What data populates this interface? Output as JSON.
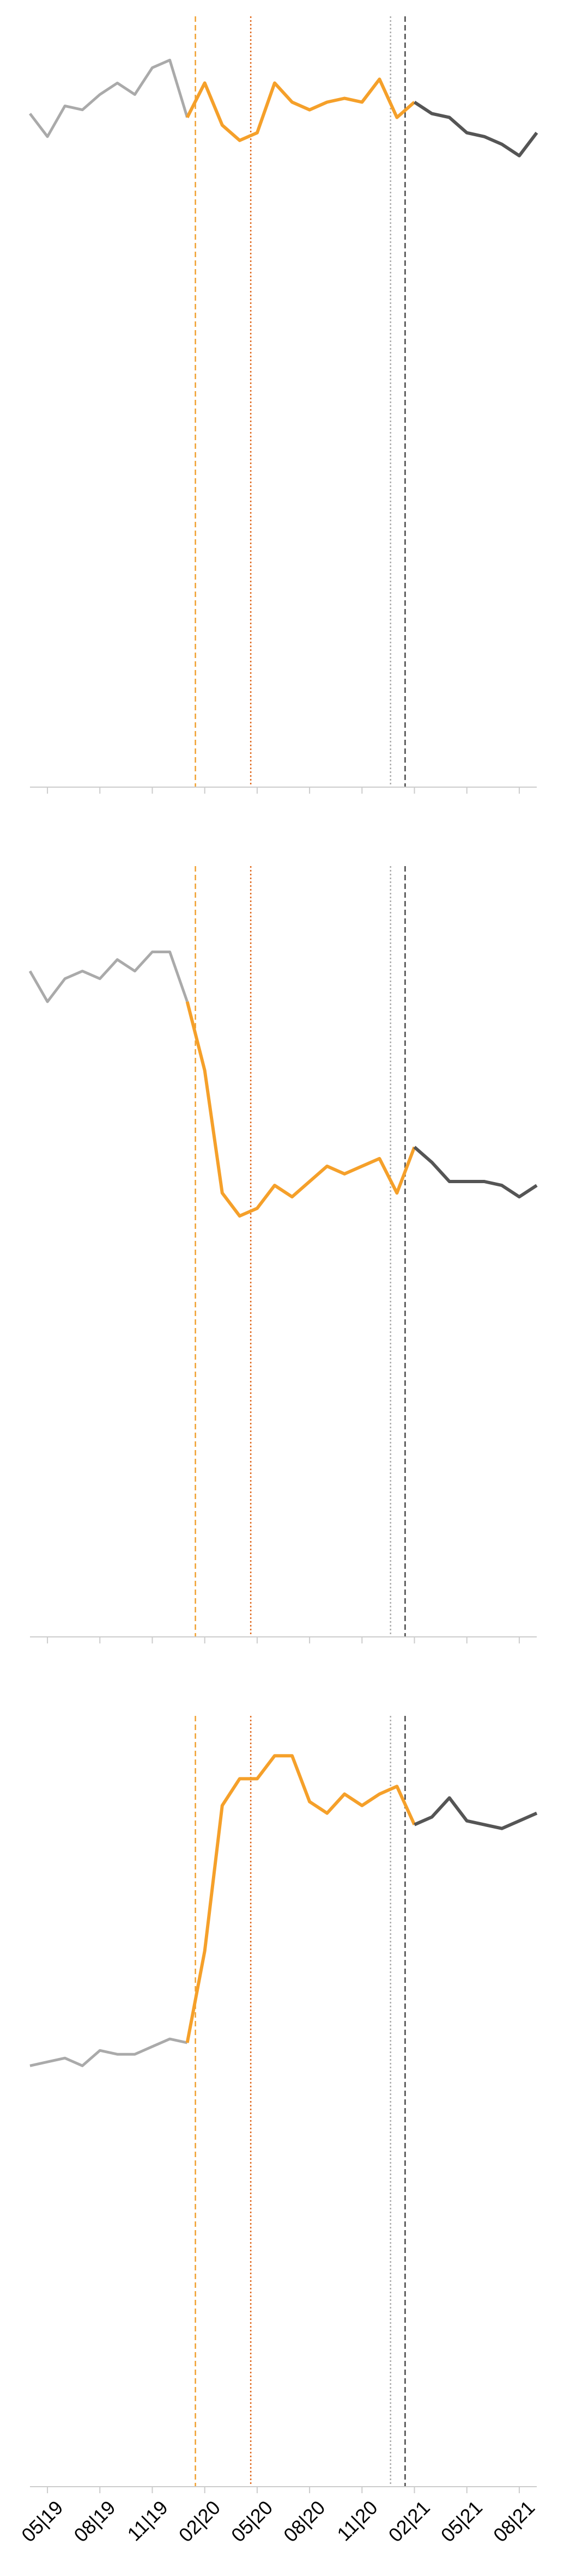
{
  "chart_data": {
    "type": "line",
    "x_tick_labels": [
      "05|19",
      "08|19",
      "11|19",
      "02|20",
      "05|20",
      "08|20",
      "11|20",
      "02|21",
      "05|21",
      "08|21"
    ],
    "x_months": [
      "2019-04",
      "2019-05",
      "2019-06",
      "2019-07",
      "2019-08",
      "2019-09",
      "2019-10",
      "2019-11",
      "2019-12",
      "2020-01",
      "2020-02",
      "2020-03",
      "2020-04",
      "2020-05",
      "2020-06",
      "2020-07",
      "2020-08",
      "2020-09",
      "2020-10",
      "2020-11",
      "2020-12",
      "2021-01",
      "2021-02",
      "2021-03",
      "2021-04",
      "2021-05",
      "2021-06",
      "2021-07",
      "2021-08",
      "2021-09"
    ],
    "reference_lines": [
      {
        "date": "2020-01-15",
        "style": "dashed",
        "color": "#f0a030"
      },
      {
        "date": "2020-04-20",
        "style": "dotted",
        "color": "#e06a20"
      },
      {
        "date": "2020-12-20",
        "style": "dotted",
        "color": "#aaaaaa"
      },
      {
        "date": "2021-01-15",
        "style": "dashed",
        "color": "#444444"
      }
    ],
    "colors": {
      "before": "#aaaaaa",
      "during": "#f5a02a",
      "after": "#555555",
      "axis": "#cccccc"
    },
    "panels": [
      {
        "ylim": [
          0,
          100
        ],
        "values": [
          88,
          85,
          89,
          88.5,
          90.5,
          92,
          90.5,
          94,
          95,
          87.5,
          92,
          86.5,
          84.5,
          85.5,
          92,
          89.5,
          88.5,
          89.5,
          90,
          89.5,
          92.5,
          87.5,
          89.5,
          88,
          87.5,
          85.5,
          85,
          84,
          82.5,
          85.5
        ],
        "segments": [
          [
            0,
            9
          ],
          [
            9,
            22
          ],
          [
            22,
            29
          ]
        ]
      },
      {
        "ylim": [
          0,
          100
        ],
        "values": [
          87,
          83,
          86,
          87,
          86,
          88.5,
          87,
          89.5,
          89.5,
          83,
          74,
          58,
          55,
          56,
          59,
          57.5,
          59.5,
          61.5,
          60.5,
          61.5,
          62.5,
          58,
          64,
          62,
          59.5,
          59.5,
          59.5,
          59,
          57.5,
          59
        ],
        "segments": [
          [
            0,
            9
          ],
          [
            9,
            22
          ],
          [
            22,
            29
          ]
        ]
      },
      {
        "ylim": [
          0,
          100
        ],
        "values": [
          55,
          55.5,
          56,
          55,
          57,
          56.5,
          56.5,
          57.5,
          58.5,
          58,
          70,
          89,
          92.5,
          92.5,
          95.5,
          95.5,
          89.5,
          88,
          90.5,
          89,
          90.5,
          91.5,
          86.5,
          87.5,
          90,
          87,
          86.5,
          86,
          87,
          88
        ],
        "segments": [
          [
            0,
            9
          ],
          [
            9,
            22
          ],
          [
            22,
            29
          ]
        ]
      }
    ]
  }
}
